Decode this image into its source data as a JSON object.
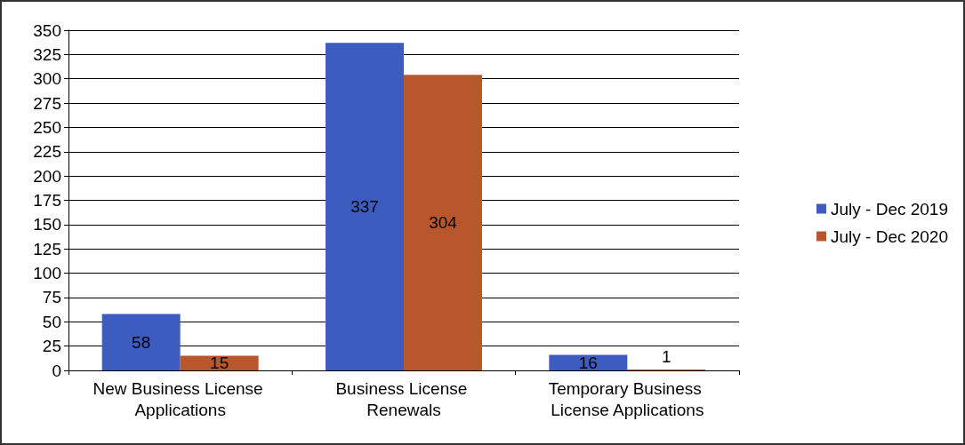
{
  "chart_data": {
    "type": "bar",
    "categories": [
      "New Business License Applications",
      "Business License Renewals",
      "Temporary Business License Applications"
    ],
    "series": [
      {
        "name": "July - Dec 2019",
        "color": "#3c5cc0",
        "values": [
          58,
          337,
          16
        ]
      },
      {
        "name": "July - Dec 2020",
        "color": "#b8562c",
        "values": [
          15,
          304,
          1
        ]
      }
    ],
    "ylim": [
      0,
      350
    ],
    "yticks": [
      0,
      25,
      50,
      75,
      100,
      125,
      150,
      175,
      200,
      225,
      250,
      275,
      300,
      325,
      350
    ],
    "grid": "y",
    "legend": "right",
    "data_labels": true
  }
}
